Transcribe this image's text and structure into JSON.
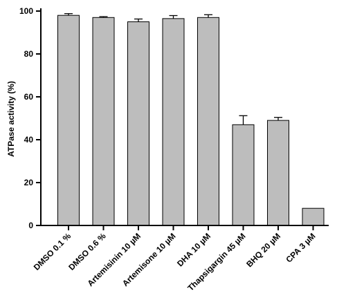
{
  "chart_data": {
    "type": "bar",
    "title": "",
    "xlabel": "",
    "ylabel": "ATPase activity (%)",
    "ylim": [
      0,
      100
    ],
    "yticks": [
      0,
      20,
      40,
      60,
      80,
      100
    ],
    "grid": false,
    "bar_color": "#bdbdbd",
    "categories": [
      "DMSO 0.1 %",
      "DMSO 0.6 %",
      "Artemisinin 10 µM",
      "Artemisone 10 µM",
      "DHA 10 µM",
      "Thapsigargin 45 µM",
      "BHQ 20 µM",
      "CPA 3 µM"
    ],
    "values": [
      98,
      97,
      95,
      96.5,
      97,
      47,
      49,
      8
    ],
    "errors": [
      0.8,
      0.4,
      1.3,
      1.4,
      1.3,
      4.2,
      1.4,
      0
    ]
  }
}
